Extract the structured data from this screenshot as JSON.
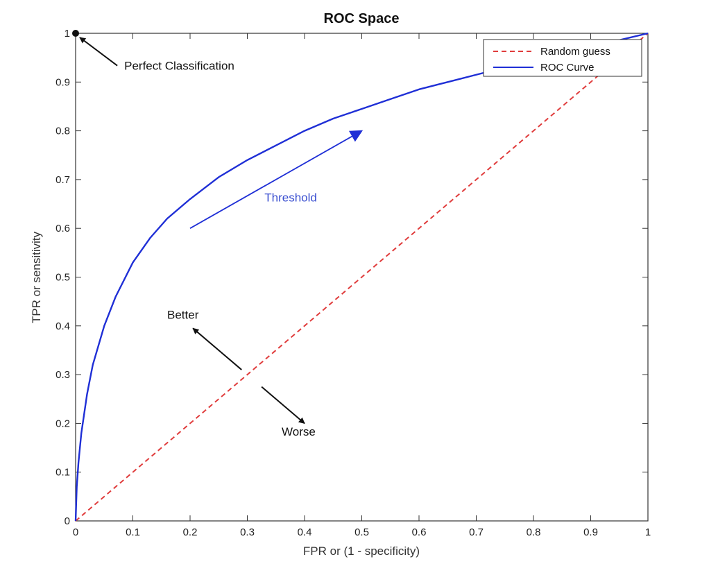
{
  "chart_data": {
    "type": "line",
    "title": "ROC Space",
    "xlabel": "FPR or (1 - specificity)",
    "ylabel": "TPR or sensitivity",
    "xlim": [
      0,
      1
    ],
    "ylim": [
      0,
      1
    ],
    "x_ticks": [
      "0",
      "0.1",
      "0.2",
      "0.3",
      "0.4",
      "0.5",
      "0.6",
      "0.7",
      "0.8",
      "0.9",
      "1"
    ],
    "y_ticks": [
      "0",
      "0.1",
      "0.2",
      "0.3",
      "0.4",
      "0.5",
      "0.6",
      "0.7",
      "0.8",
      "0.9",
      "1"
    ],
    "grid": false,
    "legend": {
      "placement": "top-right"
    },
    "series": [
      {
        "name": "Random guess",
        "color": "#e03c3c",
        "style": "dashed",
        "x": [
          0,
          1
        ],
        "y": [
          0,
          1
        ]
      },
      {
        "name": "ROC Curve",
        "color": "#1f2fd6",
        "style": "solid",
        "x": [
          0,
          0.002,
          0.005,
          0.01,
          0.02,
          0.03,
          0.05,
          0.07,
          0.1,
          0.13,
          0.16,
          0.2,
          0.25,
          0.3,
          0.35,
          0.4,
          0.45,
          0.5,
          0.55,
          0.6,
          0.65,
          0.7,
          0.75,
          0.8,
          0.85,
          0.9,
          0.95,
          1.0
        ],
        "y": [
          0,
          0.07,
          0.12,
          0.18,
          0.26,
          0.32,
          0.4,
          0.46,
          0.53,
          0.58,
          0.62,
          0.66,
          0.705,
          0.74,
          0.77,
          0.8,
          0.825,
          0.845,
          0.865,
          0.885,
          0.9,
          0.915,
          0.93,
          0.945,
          0.96,
          0.972,
          0.986,
          1.0
        ]
      }
    ],
    "annotations": [
      {
        "text": "Perfect Classification",
        "point": [
          0,
          1
        ],
        "text_at": [
          0.085,
          0.925
        ],
        "color": "#111111"
      },
      {
        "text": "Threshold",
        "arrow_from": [
          0.2,
          0.6
        ],
        "arrow_to": [
          0.5,
          0.8
        ],
        "text_at": [
          0.33,
          0.655
        ],
        "color": "#3a4fd0"
      },
      {
        "text": "Better",
        "arrow_from": [
          0.29,
          0.31
        ],
        "arrow_to": [
          0.205,
          0.395
        ],
        "text_at": [
          0.16,
          0.415
        ],
        "color": "#111111"
      },
      {
        "text": "Worse",
        "arrow_from": [
          0.325,
          0.275
        ],
        "arrow_to": [
          0.4,
          0.2
        ],
        "text_at": [
          0.36,
          0.175
        ],
        "color": "#111111"
      }
    ]
  }
}
